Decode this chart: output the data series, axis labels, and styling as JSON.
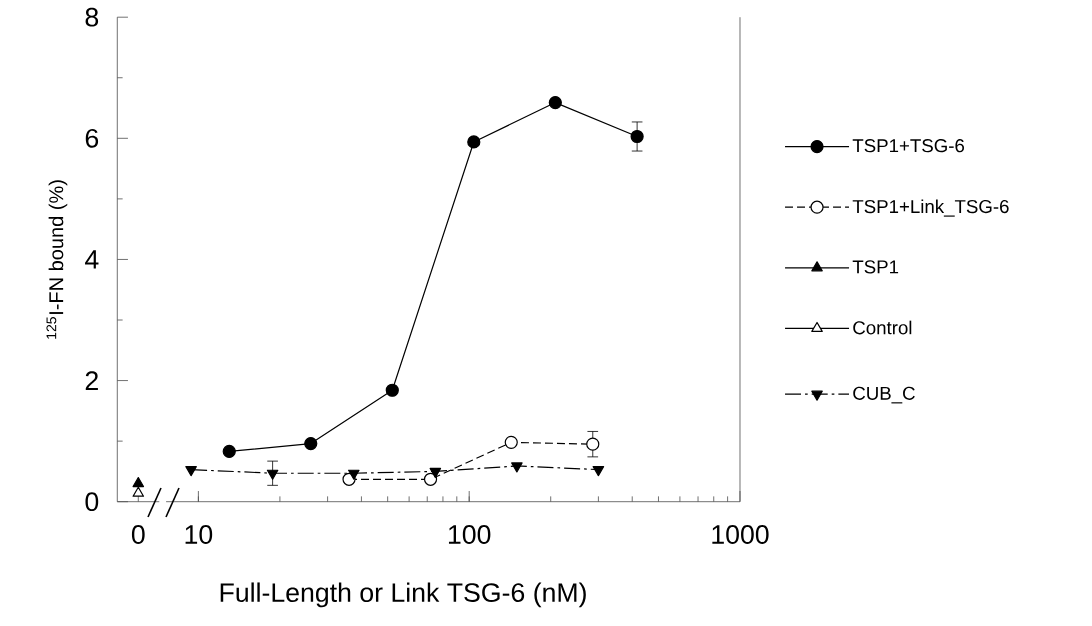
{
  "chart_data": [
    {
      "type": "line",
      "ylabel": "$^{125}$I-FN bound (%)",
      "categories": [
        "0"
      ],
      "ylim": [
        0,
        8
      ],
      "yticks": [
        0,
        2,
        4,
        6,
        8
      ],
      "legend": "right",
      "series": [
        {
          "name": "TSP1",
          "color": "#000000",
          "values": [
            0.3
          ],
          "marker": "triangle",
          "line_style": "solid"
        },
        {
          "name": "Control",
          "color": "#000000",
          "values": [
            0.14
          ],
          "marker": "triangle-open",
          "line_style": "solid"
        }
      ]
    },
    {
      "type": "line",
      "xlabel": "Full-Length or Link TSG-6 (nM)",
      "log": "x",
      "xlim": [
        7.6,
        1000
      ],
      "xticks": [
        10,
        100,
        1000
      ],
      "ylim": [
        0,
        8
      ],
      "tick_labels": "x",
      "legend": "right",
      "series": [
        {
          "name": "TSP1+TSG-6",
          "color": "#000000",
          "x": [
            13,
            26,
            52,
            104,
            208,
            417
          ],
          "values": [
            0.83,
            0.96,
            1.84,
            5.94,
            6.59,
            6.03
          ],
          "errors": [
            null,
            null,
            null,
            null,
            null,
            0.24
          ],
          "marker": "circle",
          "line_style": "solid"
        },
        {
          "name": "TSP1+Link_TSG-6",
          "color": "#000000",
          "x": [
            36,
            72,
            143,
            286
          ],
          "values": [
            0.37,
            0.37,
            0.98,
            0.95
          ],
          "errors": [
            null,
            null,
            null,
            0.21
          ],
          "marker": "circle-open",
          "line_style": "dashed"
        },
        {
          "name": "CUB_C",
          "color": "#000000",
          "x": [
            9.4,
            18.8,
            37.5,
            75,
            150,
            300
          ],
          "values": [
            0.53,
            0.47,
            0.47,
            0.5,
            0.59,
            0.53
          ],
          "errors": [
            null,
            0.2,
            null,
            null,
            null,
            null
          ],
          "marker": "triangle-down",
          "line_style": "dashdot"
        }
      ]
    }
  ]
}
